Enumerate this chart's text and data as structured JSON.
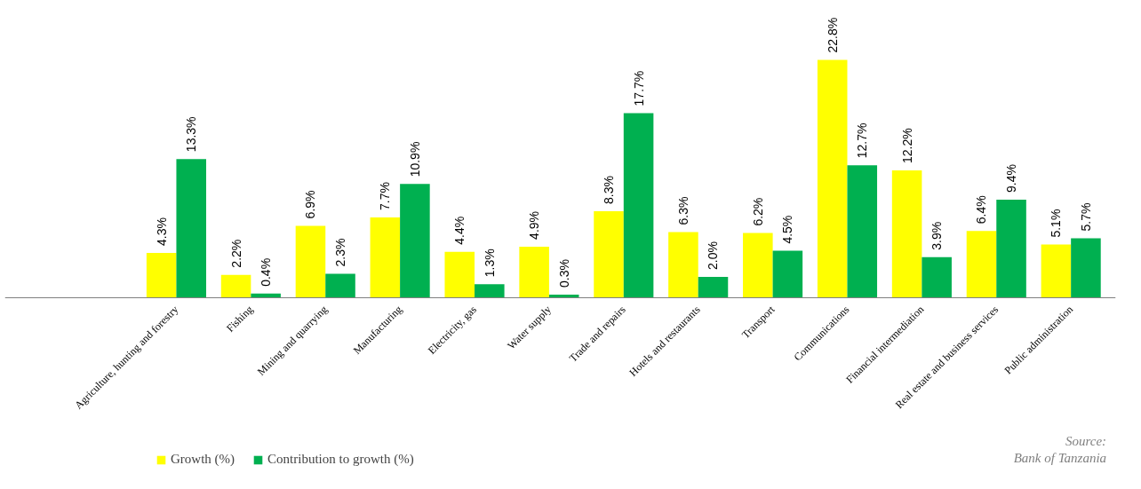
{
  "chart_data": {
    "type": "bar",
    "categories": [
      "Agriculture, hunting and forestry",
      "Fishing",
      "Mining and quarrying",
      "Manufacturing",
      "Electricity, gas",
      "Water supply",
      "Trade and repairs",
      "Hotels and restaurants",
      "Transport",
      "Communications",
      "Financial intermediation",
      "Real estate and business services",
      "Public administration"
    ],
    "series": [
      {
        "name": "Growth (%)",
        "color": "#ffff00",
        "values": [
          4.3,
          2.2,
          6.9,
          7.7,
          4.4,
          4.9,
          8.3,
          6.3,
          6.2,
          22.8,
          12.2,
          6.4,
          5.1
        ],
        "value_labels": [
          "4.3%",
          "2.2%",
          "6.9%",
          "7.7%",
          "4.4%",
          "4.9%",
          "8.3%",
          "6.3%",
          "6.2%",
          "22.8%",
          "12.2%",
          "6.4%",
          "5.1%"
        ]
      },
      {
        "name": "Contribution to growth (%)",
        "color": "#00b050",
        "values": [
          13.3,
          0.4,
          2.3,
          10.9,
          1.3,
          0.3,
          17.7,
          2.0,
          4.5,
          12.7,
          3.9,
          9.4,
          5.7
        ],
        "value_labels": [
          "13.3%",
          "0.4%",
          "2.3%",
          "10.9%",
          "1.3%",
          "0.3%",
          "17.7%",
          "2.0%",
          "4.5%",
          "12.7%",
          "3.9%",
          "9.4%",
          "5.7%"
        ]
      }
    ],
    "legend": "bottom left",
    "annotations": [
      "Source:\nBank of Tanzania"
    ]
  }
}
